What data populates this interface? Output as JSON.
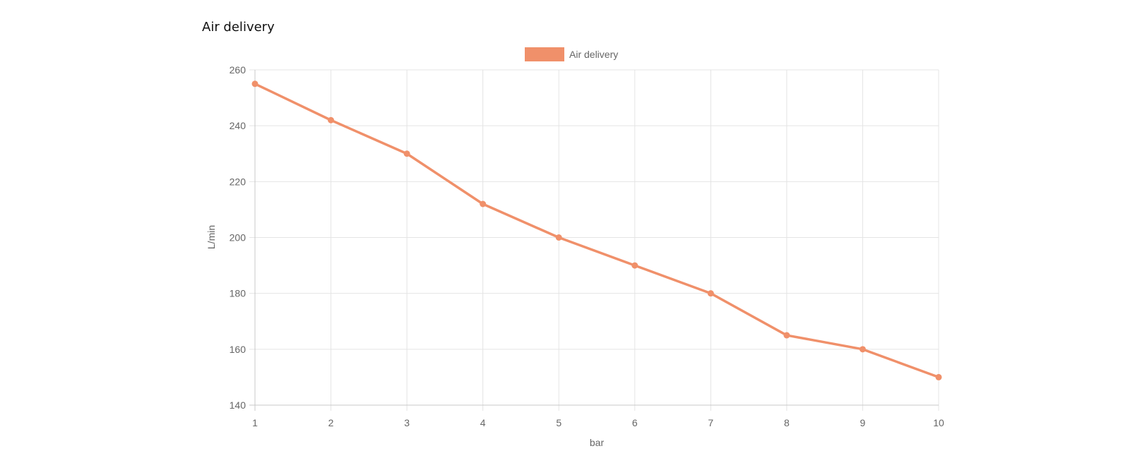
{
  "page": {
    "title": "Air delivery"
  },
  "chart_data": {
    "type": "line",
    "title": "",
    "xlabel": "bar",
    "ylabel": "L/min",
    "x": [
      1,
      2,
      3,
      4,
      5,
      6,
      7,
      8,
      9,
      10
    ],
    "series": [
      {
        "name": "Air delivery",
        "values": [
          255,
          242,
          230,
          212,
          200,
          190,
          180,
          165,
          160,
          150
        ],
        "color": "#f0906a"
      }
    ],
    "ylim": [
      140,
      260
    ],
    "yticks": [
      140,
      160,
      180,
      200,
      220,
      240,
      260
    ],
    "xticks": [
      1,
      2,
      3,
      4,
      5,
      6,
      7,
      8,
      9,
      10
    ],
    "grid": true,
    "legend_position": "top-center"
  }
}
